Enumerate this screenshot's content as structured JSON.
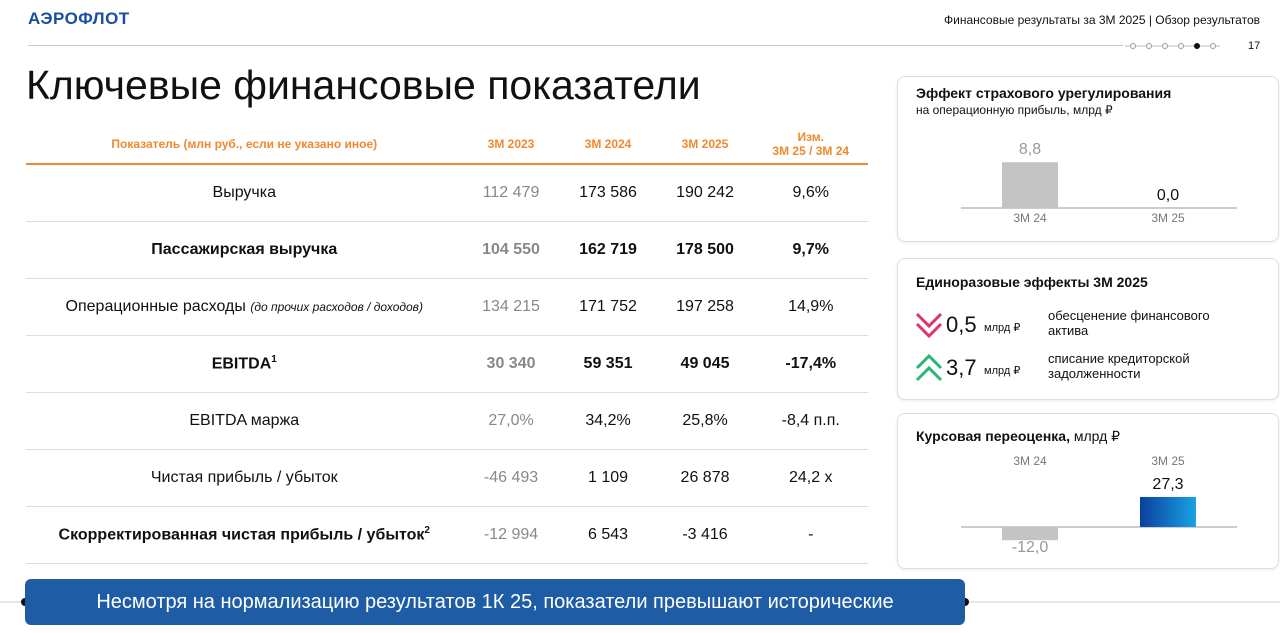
{
  "header": {
    "logo": "АЭРОФЛОТ",
    "title": "Финансовые результаты за 3М 2025 | Обзор результатов",
    "page": "17"
  },
  "title": "Ключевые финансовые показатели",
  "table": {
    "columns": [
      "Показатель (млн руб., если не указано иное)",
      "3М 2023",
      "3М 2024",
      "3М 2025"
    ],
    "change_column": [
      "Изм.",
      "3М 25 / 3М 24"
    ],
    "rows": [
      {
        "label": "Выручка",
        "cells": [
          "112 479",
          "173 586",
          "190 242",
          "9,6%"
        ]
      },
      {
        "label": "Пассажирская выручка",
        "cells": [
          "104 550",
          "162 719",
          "178 500",
          "9,7%"
        ]
      },
      {
        "label": "Операционные расходы",
        "note": "(до прочих расходов / доходов)",
        "cells": [
          "134 215",
          "171 752",
          "197 258",
          "14,9%"
        ]
      },
      {
        "label": "EBITDA",
        "sup": "1",
        "cells": [
          "30 340",
          "59 351",
          "49 045",
          "-17,4%"
        ]
      },
      {
        "label": "EBITDA маржа",
        "cells": [
          "27,0%",
          "34,2%",
          "25,8%",
          "-8,4 п.п."
        ]
      },
      {
        "label": "Чистая прибыль / убыток",
        "cells": [
          "-46 493",
          "1 109",
          "26 878",
          "24,2 x"
        ]
      },
      {
        "label": "Скорректированная чистая прибыль / убыток",
        "sup": "2",
        "cells": [
          "-12 994",
          "6 543",
          "-3 416",
          "-"
        ]
      }
    ]
  },
  "insurance": {
    "title": "Эффект страхового урегулирования",
    "subtitle": "на операционную прибыль, млрд ₽",
    "categories": [
      "3М 24",
      "3М 25"
    ],
    "values": [
      8.8,
      0.0
    ],
    "value_labels": [
      "8,8",
      "0,0"
    ]
  },
  "one_off": {
    "title": "Единоразовые эффекты 3М 2025",
    "items": [
      {
        "value": "0,5",
        "unit": "млрд ₽",
        "text": "обесценение финансового актива"
      },
      {
        "value": "3,7",
        "unit": "млрд ₽",
        "text": "списание кредиторской задолженности"
      }
    ]
  },
  "fx": {
    "title": "Курсовая переоценка,",
    "unit": "млрд ₽",
    "categories": [
      "3М 24",
      "3М 25"
    ],
    "values": [
      -12.0,
      27.3
    ],
    "value_labels": [
      "-12,0",
      "27,3"
    ]
  },
  "banner": "Несмотря на нормализацию результатов 1К 25, показатели превышают исторические"
}
